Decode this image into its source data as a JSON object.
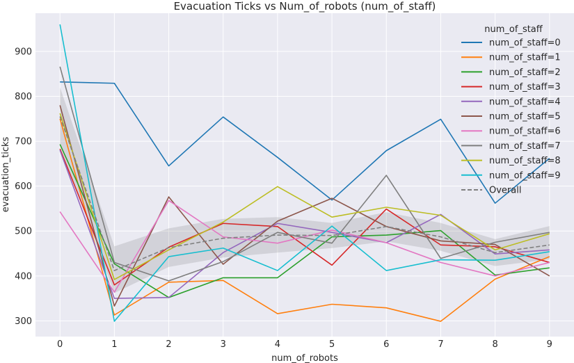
{
  "chart_data": {
    "type": "line",
    "title": "Evacuation Ticks vs Num_of_robots (num_of_staff)",
    "xlabel": "num_of_robots",
    "ylabel": "evacuation_ticks",
    "x": [
      0,
      1,
      2,
      3,
      4,
      5,
      6,
      7,
      8,
      9
    ],
    "xlim": [
      -0.45,
      9.45
    ],
    "ylim": [
      265,
      985
    ],
    "yticks": [
      300,
      400,
      500,
      600,
      700,
      800,
      900
    ],
    "grid": true,
    "legend": {
      "title": "num_of_staff",
      "placement": "top-right"
    },
    "series": [
      {
        "name": "num_of_staff=0",
        "color": "#1f77b4",
        "values": [
          832,
          829,
          645,
          754,
          664,
          569,
          679,
          749,
          562,
          662
        ]
      },
      {
        "name": "num_of_staff=1",
        "color": "#ff7f0e",
        "values": [
          750,
          313,
          386,
          390,
          316,
          337,
          329,
          299,
          393,
          443
        ]
      },
      {
        "name": "num_of_staff=2",
        "color": "#2ca02c",
        "values": [
          693,
          427,
          352,
          396,
          396,
          487,
          491,
          501,
          402,
          418
        ]
      },
      {
        "name": "num_of_staff=3",
        "color": "#d62728",
        "values": [
          683,
          380,
          464,
          517,
          510,
          424,
          549,
          469,
          465,
          430
        ]
      },
      {
        "name": "num_of_staff=4",
        "color": "#9467bd",
        "values": [
          680,
          350,
          352,
          452,
          517,
          497,
          474,
          537,
          449,
          458
        ]
      },
      {
        "name": "num_of_staff=5",
        "color": "#8c564b",
        "values": [
          780,
          333,
          576,
          426,
          522,
          573,
          510,
          478,
          470,
          400
        ]
      },
      {
        "name": "num_of_staff=6",
        "color": "#e377c2",
        "values": [
          543,
          364,
          568,
          487,
          473,
          502,
          474,
          430,
          400,
          430
        ]
      },
      {
        "name": "num_of_staff=7",
        "color": "#7f7f7f",
        "values": [
          866,
          430,
          389,
          432,
          497,
          473,
          624,
          439,
          475,
          497
        ]
      },
      {
        "name": "num_of_staff=8",
        "color": "#bcbd22",
        "values": [
          762,
          392,
          458,
          520,
          599,
          531,
          553,
          535,
          458,
          494
        ]
      },
      {
        "name": "num_of_staff=9",
        "color": "#17becf",
        "values": [
          960,
          299,
          443,
          462,
          412,
          511,
          412,
          436,
          435,
          454
        ]
      },
      {
        "name": "Overall",
        "color": "#7f7f7f",
        "dashed": true,
        "values": [
          755,
          412,
          463,
          484,
          491,
          490,
          510,
          487,
          452,
          469
        ]
      }
    ],
    "confidence_band": {
      "lower": [
        690,
        362,
        420,
        441,
        452,
        462,
        477,
        456,
        422,
        437
      ],
      "upper": [
        820,
        466,
        506,
        527,
        531,
        518,
        542,
        518,
        482,
        511
      ]
    }
  }
}
